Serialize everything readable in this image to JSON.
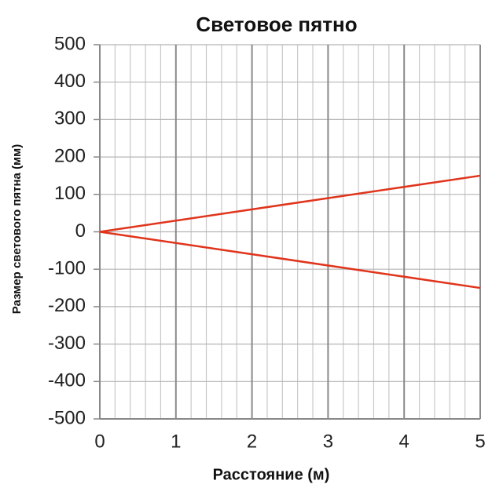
{
  "chart_data": {
    "type": "line",
    "title": "Световое пятно",
    "x_label": "Расстояние (м)",
    "y_label": "Размер светового пятна (мм)",
    "x": [
      0,
      5
    ],
    "series": [
      {
        "color": "#e0341c",
        "values": [
          0,
          150
        ]
      },
      {
        "color": "#e0341c",
        "values": [
          0,
          -150
        ]
      }
    ],
    "xlim": [
      0,
      5
    ],
    "xticks": [
      0,
      1,
      2,
      3,
      4,
      5
    ],
    "xminorticks": [
      0.2,
      0.4,
      0.6,
      0.8,
      1.2,
      1.4,
      1.6,
      1.8,
      2.2,
      2.4,
      2.6,
      2.8,
      3.2,
      3.4,
      3.6,
      3.8,
      4.2,
      4.4,
      4.6,
      4.8
    ],
    "ylim": [
      -500,
      500
    ],
    "yticks": [
      -500,
      -400,
      -300,
      -200,
      -100,
      0,
      100,
      200,
      300,
      400,
      500
    ],
    "grid": true
  }
}
